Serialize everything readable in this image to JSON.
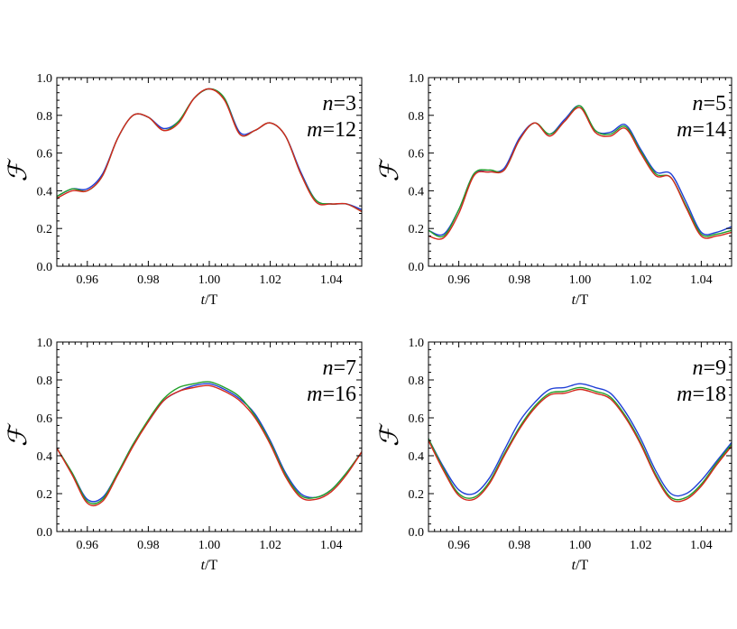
{
  "chart_data": [
    {
      "type": "line",
      "xlabel": "t/T",
      "ylabel": "ℱ",
      "xlim": [
        0.95,
        1.05
      ],
      "ylim": [
        0.0,
        1.0
      ],
      "xticks": [
        "0.96",
        "0.98",
        "1.00",
        "1.02",
        "1.04"
      ],
      "yticks": [
        "0.0",
        "0.2",
        "0.4",
        "0.6",
        "0.8",
        "1.0"
      ],
      "annotation": [
        "n=3",
        "m=12"
      ],
      "grid": false,
      "series": [
        {
          "color": "#1f3fd6",
          "x": [
            0.95,
            0.955,
            0.96,
            0.965,
            0.97,
            0.975,
            0.98,
            0.985,
            0.99,
            0.995,
            1.0,
            1.005,
            1.01,
            1.015,
            1.02,
            1.025,
            1.03,
            1.035,
            1.04,
            1.045,
            1.05
          ],
          "y": [
            0.37,
            0.41,
            0.41,
            0.49,
            0.68,
            0.8,
            0.79,
            0.73,
            0.77,
            0.89,
            0.94,
            0.89,
            0.71,
            0.72,
            0.76,
            0.69,
            0.5,
            0.35,
            0.33,
            0.33,
            0.3
          ]
        },
        {
          "color": "#22a02a",
          "x": [
            0.95,
            0.955,
            0.96,
            0.965,
            0.97,
            0.975,
            0.98,
            0.985,
            0.99,
            0.995,
            1.0,
            1.005,
            1.01,
            1.015,
            1.02,
            1.025,
            1.03,
            1.035,
            1.04,
            1.045,
            1.05
          ],
          "y": [
            0.37,
            0.41,
            0.4,
            0.48,
            0.68,
            0.8,
            0.79,
            0.72,
            0.77,
            0.89,
            0.94,
            0.89,
            0.7,
            0.72,
            0.76,
            0.69,
            0.49,
            0.35,
            0.33,
            0.33,
            0.29
          ]
        },
        {
          "color": "#d4281c",
          "x": [
            0.95,
            0.955,
            0.96,
            0.965,
            0.97,
            0.975,
            0.98,
            0.985,
            0.99,
            0.995,
            1.0,
            1.005,
            1.01,
            1.015,
            1.02,
            1.025,
            1.03,
            1.035,
            1.04,
            1.045,
            1.05
          ],
          "y": [
            0.36,
            0.4,
            0.4,
            0.48,
            0.68,
            0.8,
            0.79,
            0.72,
            0.76,
            0.89,
            0.94,
            0.88,
            0.7,
            0.72,
            0.76,
            0.69,
            0.49,
            0.34,
            0.33,
            0.33,
            0.29
          ]
        }
      ]
    },
    {
      "type": "line",
      "xlabel": "t/T",
      "ylabel": "ℱ",
      "xlim": [
        0.95,
        1.05
      ],
      "ylim": [
        0.0,
        1.0
      ],
      "xticks": [
        "0.96",
        "0.98",
        "1.00",
        "1.02",
        "1.04"
      ],
      "yticks": [
        "0.0",
        "0.2",
        "0.4",
        "0.6",
        "0.8",
        "1.0"
      ],
      "annotation": [
        "n=5",
        "m=14"
      ],
      "grid": false,
      "series": [
        {
          "color": "#1f3fd6",
          "x": [
            0.95,
            0.955,
            0.96,
            0.965,
            0.97,
            0.975,
            0.98,
            0.985,
            0.99,
            0.995,
            1.0,
            1.005,
            1.01,
            1.015,
            1.02,
            1.025,
            1.03,
            1.035,
            1.04,
            1.045,
            1.05
          ],
          "y": [
            0.19,
            0.17,
            0.3,
            0.49,
            0.5,
            0.52,
            0.68,
            0.76,
            0.7,
            0.78,
            0.85,
            0.72,
            0.71,
            0.75,
            0.62,
            0.5,
            0.49,
            0.34,
            0.18,
            0.18,
            0.21
          ]
        },
        {
          "color": "#22a02a",
          "x": [
            0.95,
            0.955,
            0.96,
            0.965,
            0.97,
            0.975,
            0.98,
            0.985,
            0.99,
            0.995,
            1.0,
            1.005,
            1.01,
            1.015,
            1.02,
            1.025,
            1.03,
            1.035,
            1.04,
            1.045,
            1.05
          ],
          "y": [
            0.19,
            0.16,
            0.3,
            0.49,
            0.51,
            0.51,
            0.67,
            0.76,
            0.7,
            0.77,
            0.85,
            0.72,
            0.7,
            0.74,
            0.61,
            0.49,
            0.47,
            0.32,
            0.17,
            0.17,
            0.19
          ]
        },
        {
          "color": "#d4281c",
          "x": [
            0.95,
            0.955,
            0.96,
            0.965,
            0.97,
            0.975,
            0.98,
            0.985,
            0.99,
            0.995,
            1.0,
            1.005,
            1.01,
            1.015,
            1.02,
            1.025,
            1.03,
            1.035,
            1.04,
            1.045,
            1.05
          ],
          "y": [
            0.16,
            0.15,
            0.28,
            0.48,
            0.5,
            0.51,
            0.67,
            0.76,
            0.69,
            0.77,
            0.84,
            0.71,
            0.69,
            0.73,
            0.6,
            0.48,
            0.47,
            0.31,
            0.16,
            0.16,
            0.18
          ]
        }
      ]
    },
    {
      "type": "line",
      "xlabel": "t/T",
      "ylabel": "ℱ",
      "xlim": [
        0.95,
        1.05
      ],
      "ylim": [
        0.0,
        1.0
      ],
      "xticks": [
        "0.96",
        "0.98",
        "1.00",
        "1.02",
        "1.04"
      ],
      "yticks": [
        "0.0",
        "0.2",
        "0.4",
        "0.6",
        "0.8",
        "1.0"
      ],
      "annotation": [
        "n=7",
        "m=16"
      ],
      "grid": false,
      "series": [
        {
          "color": "#1f3fd6",
          "x": [
            0.95,
            0.955,
            0.96,
            0.965,
            0.97,
            0.975,
            0.98,
            0.985,
            0.99,
            0.995,
            1.0,
            1.005,
            1.01,
            1.015,
            1.02,
            1.025,
            1.03,
            1.035,
            1.04,
            1.045,
            1.05
          ],
          "y": [
            0.44,
            0.31,
            0.17,
            0.18,
            0.31,
            0.46,
            0.58,
            0.69,
            0.74,
            0.77,
            0.78,
            0.75,
            0.7,
            0.62,
            0.48,
            0.31,
            0.2,
            0.18,
            0.22,
            0.31,
            0.42
          ]
        },
        {
          "color": "#22a02a",
          "x": [
            0.95,
            0.955,
            0.96,
            0.965,
            0.97,
            0.975,
            0.98,
            0.985,
            0.99,
            0.995,
            1.0,
            1.005,
            1.01,
            1.015,
            1.02,
            1.025,
            1.03,
            1.035,
            1.04,
            1.045,
            1.05
          ],
          "y": [
            0.44,
            0.31,
            0.16,
            0.17,
            0.31,
            0.46,
            0.59,
            0.7,
            0.76,
            0.78,
            0.79,
            0.76,
            0.71,
            0.61,
            0.47,
            0.3,
            0.19,
            0.18,
            0.22,
            0.31,
            0.42
          ]
        },
        {
          "color": "#d4281c",
          "x": [
            0.95,
            0.955,
            0.96,
            0.965,
            0.97,
            0.975,
            0.98,
            0.985,
            0.99,
            0.995,
            1.0,
            1.005,
            1.01,
            1.015,
            1.02,
            1.025,
            1.03,
            1.035,
            1.04,
            1.045,
            1.05
          ],
          "y": [
            0.44,
            0.3,
            0.15,
            0.16,
            0.3,
            0.45,
            0.58,
            0.69,
            0.74,
            0.76,
            0.77,
            0.74,
            0.69,
            0.6,
            0.46,
            0.29,
            0.18,
            0.17,
            0.21,
            0.3,
            0.42
          ]
        }
      ]
    },
    {
      "type": "line",
      "xlabel": "t/T",
      "ylabel": "ℱ",
      "xlim": [
        0.95,
        1.05
      ],
      "ylim": [
        0.0,
        1.0
      ],
      "xticks": [
        "0.96",
        "0.98",
        "1.00",
        "1.02",
        "1.04"
      ],
      "yticks": [
        "0.0",
        "0.2",
        "0.4",
        "0.6",
        "0.8",
        "1.0"
      ],
      "annotation": [
        "n=9",
        "m=18"
      ],
      "grid": false,
      "series": [
        {
          "color": "#1f3fd6",
          "x": [
            0.95,
            0.955,
            0.96,
            0.965,
            0.97,
            0.975,
            0.98,
            0.985,
            0.99,
            0.995,
            1.0,
            1.005,
            1.01,
            1.015,
            1.02,
            1.025,
            1.03,
            1.035,
            1.04,
            1.045,
            1.05
          ],
          "y": [
            0.49,
            0.34,
            0.22,
            0.2,
            0.28,
            0.43,
            0.58,
            0.68,
            0.75,
            0.76,
            0.78,
            0.76,
            0.73,
            0.63,
            0.49,
            0.32,
            0.2,
            0.2,
            0.27,
            0.37,
            0.47
          ]
        },
        {
          "color": "#22a02a",
          "x": [
            0.95,
            0.955,
            0.96,
            0.965,
            0.97,
            0.975,
            0.98,
            0.985,
            0.99,
            0.995,
            1.0,
            1.005,
            1.01,
            1.015,
            1.02,
            1.025,
            1.03,
            1.035,
            1.04,
            1.045,
            1.05
          ],
          "y": [
            0.49,
            0.33,
            0.2,
            0.18,
            0.26,
            0.41,
            0.55,
            0.66,
            0.73,
            0.74,
            0.76,
            0.74,
            0.71,
            0.61,
            0.47,
            0.3,
            0.18,
            0.18,
            0.25,
            0.36,
            0.46
          ]
        },
        {
          "color": "#d4281c",
          "x": [
            0.95,
            0.955,
            0.96,
            0.965,
            0.97,
            0.975,
            0.98,
            0.985,
            0.99,
            0.995,
            1.0,
            1.005,
            1.01,
            1.015,
            1.02,
            1.025,
            1.03,
            1.035,
            1.04,
            1.045,
            1.05
          ],
          "y": [
            0.48,
            0.32,
            0.19,
            0.17,
            0.25,
            0.4,
            0.54,
            0.65,
            0.72,
            0.73,
            0.75,
            0.73,
            0.7,
            0.6,
            0.46,
            0.29,
            0.17,
            0.17,
            0.24,
            0.35,
            0.45
          ]
        }
      ]
    }
  ]
}
